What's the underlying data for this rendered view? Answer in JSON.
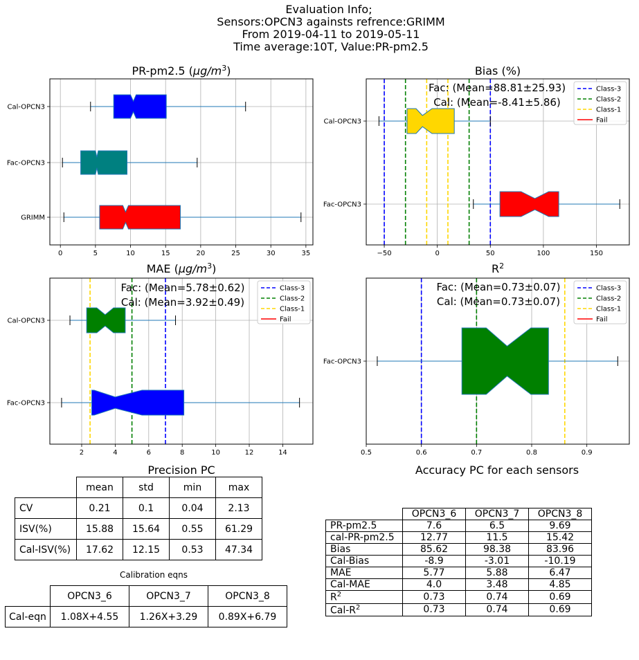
{
  "header": {
    "lines": [
      "Evaluation Info;",
      "Sensors:OPCN3 againsts refrence:GRIMM",
      "From 2019-04-11 to 2019-05-11",
      "Time average:10T, Value:PR-pm2.5"
    ]
  },
  "colors": {
    "class3": "#0000ff",
    "class2": "#008000",
    "class1": "#ffd700",
    "fail": "#ff0000",
    "whisker": "#1f77b4",
    "grid": "#b0b0b0"
  },
  "legend": [
    {
      "label": "Class-3",
      "color": "#0000ff",
      "style": "dashed"
    },
    {
      "label": "Class-2",
      "color": "#008000",
      "style": "dashed"
    },
    {
      "label": "Class-1",
      "color": "#ffd700",
      "style": "dashed"
    },
    {
      "label": "Fail",
      "color": "#ff0000",
      "style": "solid"
    }
  ],
  "chart_data": [
    {
      "type": "boxplot",
      "title": "PR-pm2.5 (μg/m³)",
      "xlim": [
        -1.5,
        36
      ],
      "xticks": [
        0,
        5,
        10,
        15,
        20,
        25,
        30,
        35
      ],
      "grid": true,
      "categories": [
        "GRIMM",
        "Fac-OPCN3",
        "Cal-OPCN3"
      ],
      "boxes": [
        {
          "label": "Cal-OPCN3",
          "whislo": 4.3,
          "q1": 7.6,
          "notch_lo": 10.0,
          "med": 10.4,
          "notch_hi": 10.8,
          "q3": 15.1,
          "whishi": 26.4,
          "color": "#0000ff"
        },
        {
          "label": "Fac-OPCN3",
          "whislo": 0.3,
          "q1": 2.9,
          "notch_lo": 5.0,
          "med": 5.2,
          "notch_hi": 5.4,
          "q3": 9.5,
          "whishi": 19.5,
          "color": "#008080"
        },
        {
          "label": "GRIMM",
          "whislo": 0.5,
          "q1": 5.6,
          "notch_lo": 8.9,
          "med": 9.3,
          "notch_hi": 9.7,
          "q3": 17.1,
          "whishi": 34.3,
          "color": "#ff0000"
        }
      ]
    },
    {
      "type": "boxplot",
      "title": "Bias (%)",
      "annotations": [
        "Fac: (Mean=88.81±25.93)",
        "Cal: (Mean=-8.41±5.86)"
      ],
      "xlim": [
        -67,
        181
      ],
      "xticks": [
        -50,
        0,
        50,
        100,
        150
      ],
      "grid": true,
      "legend_position": "top-right",
      "categories": [
        "Fac-OPCN3",
        "Cal-OPCN3"
      ],
      "thresholds": [
        {
          "value": -50,
          "class": "Class-3"
        },
        {
          "value": 50,
          "class": "Class-3"
        },
        {
          "value": -30,
          "class": "Class-2"
        },
        {
          "value": 30,
          "class": "Class-2"
        },
        {
          "value": -10,
          "class": "Class-1"
        },
        {
          "value": 10,
          "class": "Class-1"
        }
      ],
      "boxes": [
        {
          "label": "Cal-OPCN3",
          "whislo": -55,
          "q1": -28.5,
          "notch_lo": -20,
          "med": -14,
          "notch_hi": -5,
          "q3": 16,
          "whishi": 50,
          "color": "#ffd700"
        },
        {
          "label": "Fac-OPCN3",
          "whislo": 34,
          "q1": 59,
          "notch_lo": 79,
          "med": 92,
          "notch_hi": 105,
          "q3": 114.5,
          "whishi": 172,
          "color": "#ff0000"
        }
      ]
    },
    {
      "type": "boxplot",
      "title": "MAE (μg/m³)",
      "annotations": [
        "Fac: (Mean=5.78±0.62)",
        "Cal: (Mean=3.92±0.49)"
      ],
      "xlim": [
        0.1,
        15.8
      ],
      "xticks": [
        2,
        4,
        6,
        8,
        10,
        12,
        14
      ],
      "grid": true,
      "legend_position": "top-right",
      "categories": [
        "Fac-OPCN3",
        "Cal-OPCN3"
      ],
      "thresholds": [
        {
          "value": 7,
          "class": "Class-3"
        },
        {
          "value": 5,
          "class": "Class-2"
        },
        {
          "value": 2.5,
          "class": "Class-1"
        }
      ],
      "boxes": [
        {
          "label": "Cal-OPCN3",
          "whislo": 1.3,
          "q1": 2.3,
          "notch_lo": 2.9,
          "med": 3.4,
          "notch_hi": 3.9,
          "q3": 4.6,
          "whishi": 7.6,
          "color": "#008000"
        },
        {
          "label": "Fac-OPCN3",
          "whislo": 0.8,
          "q1": 2.6,
          "notch_lo": 2.75,
          "med": 4.0,
          "notch_hi": 5.6,
          "q3": 8.1,
          "whishi": 15.0,
          "color": "#0000ff"
        }
      ]
    },
    {
      "type": "boxplot",
      "title": "R²",
      "annotations": [
        "Fac: (Mean=0.73±0.07)",
        "Cal: (Mean=0.73±0.07)"
      ],
      "xlim": [
        0.5,
        0.977
      ],
      "xticks": [
        0.5,
        0.6,
        0.7,
        0.8,
        0.9
      ],
      "xtick_labels": [
        "0.5",
        "0.6",
        "0.7",
        "0.8",
        "0.9"
      ],
      "grid": true,
      "legend_position": "top-right",
      "categories": [
        "Fac-OPCN3"
      ],
      "thresholds": [
        {
          "value": 0.6,
          "class": "Class-3"
        },
        {
          "value": 0.7,
          "class": "Class-2"
        },
        {
          "value": 0.86,
          "class": "Class-1"
        }
      ],
      "boxes": [
        {
          "label": "Fac-OPCN3",
          "whislo": 0.52,
          "q1": 0.6735,
          "notch_lo": 0.7175,
          "med": 0.7555,
          "notch_hi": 0.7985,
          "q3": 0.8305,
          "whishi": 0.956,
          "color": "#008000"
        }
      ]
    },
    {
      "type": "table",
      "title": "Precision PC",
      "columns": [
        "",
        "mean",
        "std",
        "min",
        "max"
      ],
      "rows": [
        [
          "CV",
          "0.21",
          "0.1",
          "0.04",
          "2.13"
        ],
        [
          "ISV(%)",
          "15.88",
          "15.64",
          "0.55",
          "61.29"
        ],
        [
          "Cal-ISV(%)",
          "17.62",
          "12.15",
          "0.53",
          "47.34"
        ]
      ]
    },
    {
      "type": "table",
      "title": "Calibration eqns",
      "columns": [
        "",
        "OPCN3_6",
        "OPCN3_7",
        "OPCN3_8"
      ],
      "rows": [
        [
          "Cal-eqn",
          "1.08X+4.55",
          "1.26X+3.29",
          "0.89X+6.79"
        ]
      ]
    },
    {
      "type": "table",
      "title": "Accuracy PC for each sensors",
      "columns": [
        "",
        "OPCN3_6",
        "OPCN3_7",
        "OPCN3_8"
      ],
      "rows": [
        [
          "PR-pm2.5",
          "7.6",
          "6.5",
          "9.69"
        ],
        [
          "cal-PR-pm2.5",
          "12.77",
          "11.5",
          "15.42"
        ],
        [
          "Bias",
          "85.62",
          "98.38",
          "83.96"
        ],
        [
          "Cal-Bias",
          "-8.9",
          "-3.01",
          "-10.19"
        ],
        [
          "MAE",
          "5.77",
          "5.88",
          "6.47"
        ],
        [
          "Cal-MAE",
          "4.0",
          "3.48",
          "4.85"
        ],
        [
          "R²",
          "0.73",
          "0.74",
          "0.69"
        ],
        [
          "Cal-R²",
          "0.73",
          "0.74",
          "0.69"
        ]
      ]
    }
  ]
}
